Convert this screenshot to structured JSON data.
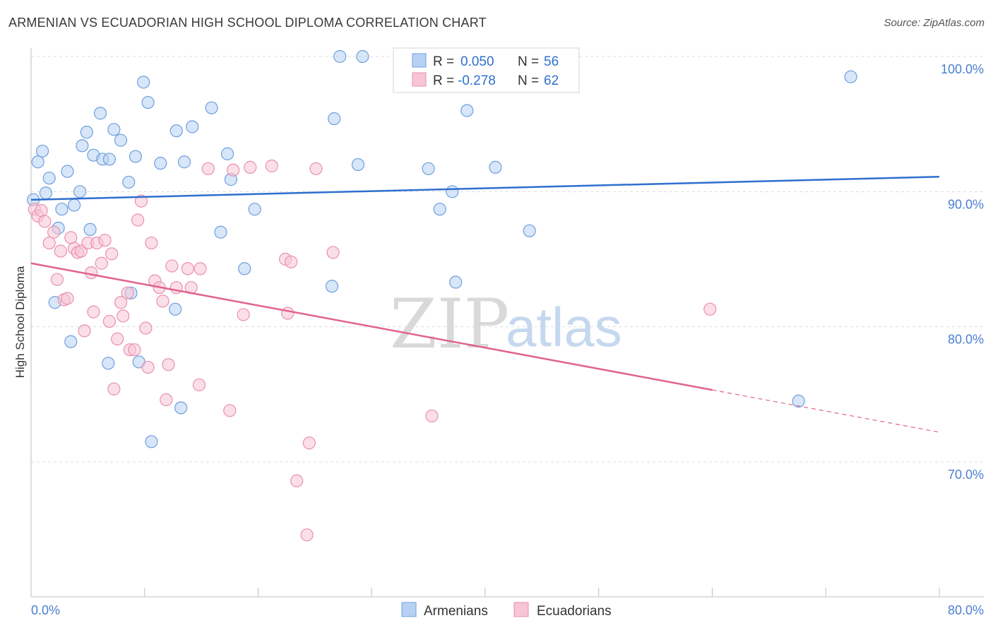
{
  "title": "ARMENIAN VS ECUADORIAN HIGH SCHOOL DIPLOMA CORRELATION CHART",
  "source": "Source: ZipAtlas.com",
  "watermark": {
    "zip": "ZIP",
    "atlas": "atlas"
  },
  "stats": [
    {
      "r_label": "R =",
      "r_value": "0.050",
      "n_label": "N =",
      "n_value": "56"
    },
    {
      "r_label": "R =",
      "r_value": "-0.278",
      "n_label": "N =",
      "n_value": "62"
    }
  ],
  "colors": {
    "blue_fill": "#b7d1f3",
    "blue_stroke": "#6f9fdc",
    "blue_line": "#2f6fcf",
    "pink_fill": "#f7c5d5",
    "pink_stroke": "#ea8fae",
    "pink_line": "#e0638e",
    "tick_label": "#4a7fd0",
    "grid": "#dcdcdc"
  },
  "chart_data": {
    "type": "scatter",
    "xlabel": "",
    "ylabel": "High School Diploma",
    "xlim": [
      0,
      80
    ],
    "ylim": [
      61,
      101.5
    ],
    "x_tick_labels": [
      "0.0%",
      "80.0%"
    ],
    "y_ticks": [
      70,
      80,
      90,
      100
    ],
    "y_tick_labels": [
      "70.0%",
      "80.0%",
      "90.0%",
      "100.0%"
    ],
    "grid": true,
    "legend": "bottom-center",
    "series": [
      {
        "name": "Armenians",
        "color": "#b7d1f3",
        "trend": {
          "x": [
            0,
            80
          ],
          "y": [
            89.4,
            91.1
          ],
          "dashed_from": null
        },
        "points": [
          [
            0.2,
            89.4
          ],
          [
            0.6,
            92.2
          ],
          [
            1.0,
            93.0
          ],
          [
            1.3,
            89.9
          ],
          [
            1.6,
            91.0
          ],
          [
            2.1,
            81.8
          ],
          [
            2.4,
            87.3
          ],
          [
            2.7,
            88.7
          ],
          [
            3.2,
            91.5
          ],
          [
            3.5,
            78.9
          ],
          [
            3.8,
            89.0
          ],
          [
            4.3,
            90.0
          ],
          [
            4.5,
            93.4
          ],
          [
            4.9,
            94.4
          ],
          [
            5.2,
            87.2
          ],
          [
            5.5,
            92.7
          ],
          [
            6.1,
            95.8
          ],
          [
            6.3,
            92.4
          ],
          [
            6.8,
            77.3
          ],
          [
            6.9,
            92.4
          ],
          [
            7.3,
            94.6
          ],
          [
            7.9,
            93.8
          ],
          [
            8.6,
            90.7
          ],
          [
            8.8,
            82.5
          ],
          [
            9.2,
            92.6
          ],
          [
            9.5,
            77.4
          ],
          [
            9.9,
            98.1
          ],
          [
            10.3,
            96.6
          ],
          [
            10.6,
            71.5
          ],
          [
            11.4,
            92.1
          ],
          [
            12.7,
            81.3
          ],
          [
            12.8,
            94.5
          ],
          [
            13.2,
            74.0
          ],
          [
            13.5,
            92.2
          ],
          [
            14.2,
            94.8
          ],
          [
            15.9,
            96.2
          ],
          [
            16.7,
            87.0
          ],
          [
            17.3,
            92.8
          ],
          [
            17.6,
            90.9
          ],
          [
            18.8,
            84.3
          ],
          [
            19.7,
            88.7
          ],
          [
            26.5,
            83.0
          ],
          [
            26.7,
            95.4
          ],
          [
            27.2,
            100.0
          ],
          [
            28.8,
            92.0
          ],
          [
            29.2,
            100.0
          ],
          [
            32.7,
            100.0
          ],
          [
            35.0,
            91.7
          ],
          [
            36.0,
            88.7
          ],
          [
            37.1,
            90.0
          ],
          [
            37.4,
            83.3
          ],
          [
            38.4,
            96.0
          ],
          [
            40.9,
            91.8
          ],
          [
            43.9,
            87.1
          ],
          [
            67.6,
            74.5
          ],
          [
            72.2,
            98.5
          ]
        ]
      },
      {
        "name": "Ecuadorians",
        "color": "#f7c5d5",
        "trend": {
          "x": [
            0,
            80
          ],
          "y": [
            84.7,
            72.2
          ],
          "dashed_from": 60
        },
        "points": [
          [
            0.3,
            88.7
          ],
          [
            0.6,
            88.2
          ],
          [
            0.9,
            88.6
          ],
          [
            1.2,
            87.8
          ],
          [
            1.6,
            86.2
          ],
          [
            2.0,
            87.0
          ],
          [
            2.3,
            83.5
          ],
          [
            2.6,
            85.6
          ],
          [
            2.9,
            82.0
          ],
          [
            3.2,
            82.1
          ],
          [
            3.5,
            86.6
          ],
          [
            3.8,
            85.8
          ],
          [
            4.1,
            85.5
          ],
          [
            4.4,
            85.6
          ],
          [
            4.7,
            79.7
          ],
          [
            5.0,
            86.2
          ],
          [
            5.3,
            84.0
          ],
          [
            5.5,
            81.1
          ],
          [
            5.8,
            86.2
          ],
          [
            6.2,
            84.7
          ],
          [
            6.5,
            86.4
          ],
          [
            6.9,
            80.4
          ],
          [
            7.1,
            85.4
          ],
          [
            7.3,
            75.4
          ],
          [
            7.6,
            79.1
          ],
          [
            7.9,
            81.8
          ],
          [
            8.1,
            80.8
          ],
          [
            8.5,
            82.5
          ],
          [
            8.7,
            78.3
          ],
          [
            9.1,
            78.3
          ],
          [
            9.4,
            87.9
          ],
          [
            9.7,
            89.3
          ],
          [
            10.1,
            79.9
          ],
          [
            10.3,
            77.0
          ],
          [
            10.6,
            86.2
          ],
          [
            10.9,
            83.4
          ],
          [
            11.3,
            82.9
          ],
          [
            11.6,
            81.9
          ],
          [
            11.9,
            74.6
          ],
          [
            12.1,
            77.2
          ],
          [
            12.4,
            84.5
          ],
          [
            12.8,
            82.9
          ],
          [
            13.8,
            84.3
          ],
          [
            14.1,
            82.9
          ],
          [
            14.8,
            75.7
          ],
          [
            14.9,
            84.3
          ],
          [
            15.6,
            91.7
          ],
          [
            17.5,
            73.8
          ],
          [
            17.8,
            91.6
          ],
          [
            18.7,
            80.9
          ],
          [
            19.3,
            91.8
          ],
          [
            21.2,
            91.9
          ],
          [
            22.4,
            85.0
          ],
          [
            22.6,
            81.0
          ],
          [
            22.9,
            84.8
          ],
          [
            23.4,
            68.6
          ],
          [
            24.3,
            64.6
          ],
          [
            24.5,
            71.4
          ],
          [
            25.1,
            91.7
          ],
          [
            26.6,
            85.5
          ],
          [
            35.3,
            73.4
          ],
          [
            59.8,
            81.3
          ]
        ]
      }
    ]
  }
}
